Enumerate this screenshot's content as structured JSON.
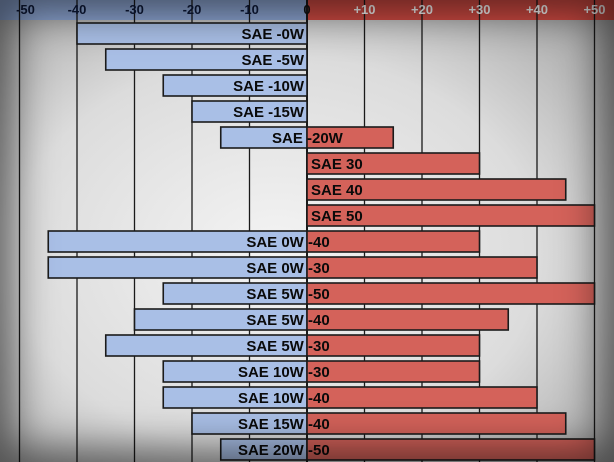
{
  "chart_data": {
    "type": "bar",
    "orientation": "horizontal-range",
    "x_ticks": [
      "-50",
      "-40",
      "-30",
      "-20",
      "-10",
      "0",
      "+10",
      "+20",
      "+30",
      "+40",
      "+50"
    ],
    "xlim": [
      -50,
      50
    ],
    "grid": true,
    "colors": {
      "cold": "#a9bfe6",
      "hot": "#d4625a",
      "header_cold": "#8fa8d6",
      "header_hot": "#d14b43",
      "gridline": "#1a1a1a",
      "border": "#1b1b1b"
    },
    "bars": [
      {
        "label": "SAE -0W",
        "min": -40,
        "max": 0
      },
      {
        "label": "SAE -5W",
        "min": -35,
        "max": 0
      },
      {
        "label": "SAE -10W",
        "min": -25,
        "max": 0
      },
      {
        "label": "SAE -15W",
        "min": -20,
        "max": 0
      },
      {
        "label": "SAE -20W",
        "min": -15,
        "max": 15
      },
      {
        "label": "SAE 30",
        "min": 0,
        "max": 30
      },
      {
        "label": "SAE 40",
        "min": 0,
        "max": 45
      },
      {
        "label": "SAE 50",
        "min": 0,
        "max": 50
      },
      {
        "label": "SAE 0W -40",
        "min": -45,
        "max": 30
      },
      {
        "label": "SAE 0W -30",
        "min": -45,
        "max": 40
      },
      {
        "label": "SAE 5W -50",
        "min": -25,
        "max": 50
      },
      {
        "label": "SAE 5W -40",
        "min": -30,
        "max": 35
      },
      {
        "label": "SAE 5W -30",
        "min": -35,
        "max": 30
      },
      {
        "label": "SAE 10W -30",
        "min": -25,
        "max": 30
      },
      {
        "label": "SAE 10W -40",
        "min": -25,
        "max": 40
      },
      {
        "label": "SAE 15W -40",
        "min": -20,
        "max": 45
      },
      {
        "label": "SAE 20W -50",
        "min": -15,
        "max": 50
      }
    ]
  }
}
